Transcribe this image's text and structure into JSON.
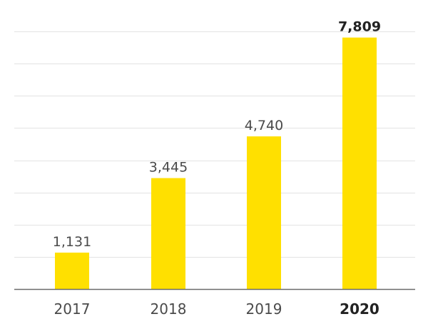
{
  "chart_data": {
    "type": "bar",
    "categories": [
      "2017",
      "2018",
      "2019",
      "2020"
    ],
    "values": [
      1131,
      3445,
      4740,
      7809
    ],
    "value_labels": [
      "1,131",
      "3,445",
      "4,740",
      "7,809"
    ],
    "highlighted_category": "2020",
    "title": "",
    "xlabel": "",
    "ylabel": "",
    "ylim": [
      0,
      8000
    ],
    "grid": true,
    "legend": "none",
    "bar_color": "#FFE000",
    "grid_color": "#E3E3E3",
    "axis_color": "#6B6B6B"
  }
}
